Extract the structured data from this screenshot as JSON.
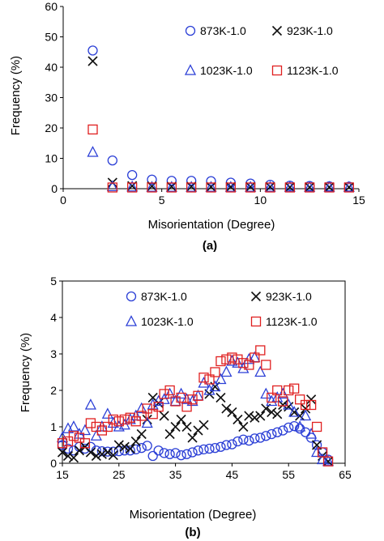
{
  "colors": {
    "873K-1.0": "#2b3fd6",
    "923K-1.0": "#111111",
    "1023K-1.0": "#2b3fd6",
    "1123K-1.0": "#e02020"
  },
  "chart_data": [
    {
      "type": "scatter",
      "panel_label": "(a)",
      "xlabel": "Misorientation (Degree)",
      "ylabel": "Frequency (%)",
      "xlim": [
        0,
        15
      ],
      "ylim": [
        0,
        60
      ],
      "xticks": [
        0,
        5,
        10,
        15
      ],
      "yticks": [
        0,
        10,
        20,
        30,
        40,
        50,
        60
      ],
      "grid": false,
      "legend_position": "top-right",
      "series": [
        {
          "name": "873K-1.0",
          "marker": "circle",
          "points": [
            [
              1.5,
              45.5
            ],
            [
              2.5,
              9.3
            ],
            [
              3.5,
              4.5
            ],
            [
              4.5,
              3.0
            ],
            [
              5.5,
              2.6
            ],
            [
              6.5,
              2.6
            ],
            [
              7.5,
              2.5
            ],
            [
              8.5,
              2.0
            ],
            [
              9.5,
              1.7
            ],
            [
              10.5,
              1.3
            ],
            [
              11.5,
              1.0
            ],
            [
              12.5,
              0.9
            ],
            [
              13.5,
              0.8
            ],
            [
              14.5,
              0.7
            ]
          ]
        },
        {
          "name": "923K-1.0",
          "marker": "x",
          "points": [
            [
              1.5,
              42
            ],
            [
              2.5,
              2.0
            ],
            [
              3.5,
              0.9
            ],
            [
              4.5,
              0.8
            ],
            [
              5.5,
              0.7
            ],
            [
              6.5,
              0.7
            ],
            [
              7.5,
              0.6
            ],
            [
              8.5,
              0.6
            ],
            [
              9.5,
              0.6
            ],
            [
              10.5,
              0.6
            ],
            [
              11.5,
              0.5
            ],
            [
              12.5,
              0.5
            ],
            [
              13.5,
              0.5
            ],
            [
              14.5,
              0.5
            ]
          ]
        },
        {
          "name": "1023K-1.0",
          "marker": "triangle",
          "points": [
            [
              1.5,
              12
            ],
            [
              2.5,
              0.7
            ],
            [
              3.5,
              0.6
            ],
            [
              4.5,
              0.5
            ],
            [
              5.5,
              0.5
            ],
            [
              6.5,
              0.5
            ],
            [
              7.5,
              0.5
            ],
            [
              8.5,
              0.5
            ],
            [
              9.5,
              0.5
            ],
            [
              10.5,
              0.5
            ],
            [
              11.5,
              0.5
            ],
            [
              12.5,
              0.5
            ],
            [
              13.5,
              0.5
            ],
            [
              14.5,
              0.5
            ]
          ]
        },
        {
          "name": "1123K-1.0",
          "marker": "square",
          "points": [
            [
              1.5,
              19.5
            ],
            [
              2.5,
              0.4
            ],
            [
              3.5,
              0.4
            ],
            [
              4.5,
              0.4
            ],
            [
              5.5,
              0.4
            ],
            [
              6.5,
              0.4
            ],
            [
              7.5,
              0.4
            ],
            [
              8.5,
              0.4
            ],
            [
              9.5,
              0.4
            ],
            [
              10.5,
              0.4
            ],
            [
              11.5,
              0.4
            ],
            [
              12.5,
              0.4
            ],
            [
              13.5,
              0.4
            ],
            [
              14.5,
              0.4
            ]
          ]
        }
      ]
    },
    {
      "type": "scatter",
      "panel_label": "(b)",
      "xlabel": "Misorientation (Degree)",
      "ylabel": "Frequency (%)",
      "xlim": [
        15,
        65
      ],
      "ylim": [
        0,
        5
      ],
      "xticks": [
        15,
        25,
        35,
        45,
        55,
        65
      ],
      "yticks": [
        0,
        1,
        2,
        3,
        4,
        5
      ],
      "grid": false,
      "legend_position": "top",
      "series": [
        {
          "name": "873K-1.0",
          "marker": "circle",
          "points": [
            [
              15,
              0.5
            ],
            [
              16,
              0.4
            ],
            [
              17,
              0.35
            ],
            [
              18,
              0.45
            ],
            [
              19,
              0.4
            ],
            [
              20,
              0.45
            ],
            [
              21,
              0.35
            ],
            [
              22,
              0.33
            ],
            [
              23,
              0.32
            ],
            [
              24,
              0.32
            ],
            [
              25,
              0.33
            ],
            [
              26,
              0.35
            ],
            [
              27,
              0.35
            ],
            [
              28,
              0.38
            ],
            [
              29,
              0.42
            ],
            [
              30,
              0.48
            ],
            [
              31,
              0.2
            ],
            [
              32,
              0.35
            ],
            [
              33,
              0.28
            ],
            [
              34,
              0.25
            ],
            [
              35,
              0.28
            ],
            [
              36,
              0.22
            ],
            [
              37,
              0.25
            ],
            [
              38,
              0.3
            ],
            [
              39,
              0.35
            ],
            [
              40,
              0.38
            ],
            [
              41,
              0.4
            ],
            [
              42,
              0.42
            ],
            [
              43,
              0.45
            ],
            [
              44,
              0.5
            ],
            [
              45,
              0.52
            ],
            [
              46,
              0.6
            ],
            [
              47,
              0.65
            ],
            [
              48,
              0.62
            ],
            [
              49,
              0.68
            ],
            [
              50,
              0.7
            ],
            [
              51,
              0.75
            ],
            [
              52,
              0.8
            ],
            [
              53,
              0.85
            ],
            [
              54,
              0.9
            ],
            [
              55,
              0.98
            ],
            [
              56,
              1.02
            ],
            [
              57,
              0.95
            ],
            [
              58,
              0.85
            ],
            [
              59,
              0.7
            ],
            [
              60,
              0.5
            ],
            [
              61,
              0.3
            ],
            [
              62,
              0.1
            ]
          ]
        },
        {
          "name": "923K-1.0",
          "marker": "x",
          "points": [
            [
              15,
              0.3
            ],
            [
              16,
              0.2
            ],
            [
              17,
              0.15
            ],
            [
              18,
              0.35
            ],
            [
              19,
              0.45
            ],
            [
              20,
              0.3
            ],
            [
              21,
              0.2
            ],
            [
              22,
              0.25
            ],
            [
              23,
              0.3
            ],
            [
              24,
              0.22
            ],
            [
              25,
              0.5
            ],
            [
              26,
              0.45
            ],
            [
              27,
              0.4
            ],
            [
              28,
              0.6
            ],
            [
              29,
              0.8
            ],
            [
              30,
              1.2
            ],
            [
              31,
              1.8
            ],
            [
              32,
              1.65
            ],
            [
              33,
              1.3
            ],
            [
              34,
              0.8
            ],
            [
              35,
              1.0
            ],
            [
              36,
              1.2
            ],
            [
              37,
              1.0
            ],
            [
              38,
              0.7
            ],
            [
              39,
              0.9
            ],
            [
              40,
              1.05
            ],
            [
              41,
              1.9
            ],
            [
              42,
              2.1
            ],
            [
              43,
              1.8
            ],
            [
              44,
              1.5
            ],
            [
              45,
              1.4
            ],
            [
              46,
              1.2
            ],
            [
              47,
              1.0
            ],
            [
              48,
              1.3
            ],
            [
              49,
              1.25
            ],
            [
              50,
              1.3
            ],
            [
              51,
              1.5
            ],
            [
              52,
              1.4
            ],
            [
              53,
              1.35
            ],
            [
              54,
              1.6
            ],
            [
              55,
              1.55
            ],
            [
              56,
              1.4
            ],
            [
              57,
              1.3
            ],
            [
              58,
              1.5
            ],
            [
              59,
              1.75
            ],
            [
              60,
              0.5
            ],
            [
              61,
              0.2
            ],
            [
              62,
              0.05
            ]
          ]
        },
        {
          "name": "1023K-1.0",
          "marker": "triangle",
          "points": [
            [
              15,
              0.7
            ],
            [
              16,
              0.95
            ],
            [
              17,
              1.0
            ],
            [
              18,
              0.8
            ],
            [
              19,
              0.9
            ],
            [
              20,
              1.6
            ],
            [
              21,
              0.75
            ],
            [
              22,
              1.0
            ],
            [
              23,
              1.35
            ],
            [
              24,
              1.1
            ],
            [
              25,
              1.0
            ],
            [
              26,
              1.05
            ],
            [
              27,
              1.2
            ],
            [
              28,
              1.3
            ],
            [
              29,
              1.5
            ],
            [
              30,
              1.1
            ],
            [
              31,
              1.6
            ],
            [
              32,
              1.7
            ],
            [
              33,
              1.75
            ],
            [
              34,
              1.9
            ],
            [
              35,
              1.7
            ],
            [
              36,
              1.9
            ],
            [
              37,
              1.75
            ],
            [
              38,
              1.7
            ],
            [
              39,
              1.85
            ],
            [
              40,
              2.2
            ],
            [
              41,
              2.0
            ],
            [
              42,
              2.1
            ],
            [
              43,
              2.3
            ],
            [
              44,
              2.5
            ],
            [
              45,
              2.8
            ],
            [
              46,
              2.75
            ],
            [
              47,
              2.6
            ],
            [
              48,
              2.85
            ],
            [
              49,
              2.9
            ],
            [
              50,
              2.5
            ],
            [
              51,
              1.9
            ],
            [
              52,
              1.7
            ],
            [
              53,
              1.8
            ],
            [
              54,
              1.9
            ],
            [
              55,
              1.6
            ],
            [
              56,
              1.4
            ],
            [
              57,
              1.0
            ],
            [
              58,
              1.3
            ],
            [
              59,
              0.8
            ],
            [
              60,
              0.3
            ],
            [
              61,
              0.1
            ],
            [
              62,
              0.05
            ]
          ]
        },
        {
          "name": "1123K-1.0",
          "marker": "square",
          "points": [
            [
              15,
              0.55
            ],
            [
              16,
              0.6
            ],
            [
              17,
              0.75
            ],
            [
              18,
              0.7
            ],
            [
              19,
              0.55
            ],
            [
              20,
              1.1
            ],
            [
              21,
              1.0
            ],
            [
              22,
              0.9
            ],
            [
              23,
              1.0
            ],
            [
              24,
              1.2
            ],
            [
              25,
              1.15
            ],
            [
              26,
              1.2
            ],
            [
              27,
              1.25
            ],
            [
              28,
              1.15
            ],
            [
              29,
              1.3
            ],
            [
              30,
              1.5
            ],
            [
              31,
              1.35
            ],
            [
              32,
              1.55
            ],
            [
              33,
              1.9
            ],
            [
              34,
              2.0
            ],
            [
              35,
              1.7
            ],
            [
              36,
              1.8
            ],
            [
              37,
              1.55
            ],
            [
              38,
              1.75
            ],
            [
              39,
              1.85
            ],
            [
              40,
              2.35
            ],
            [
              41,
              2.3
            ],
            [
              42,
              2.5
            ],
            [
              43,
              2.8
            ],
            [
              44,
              2.85
            ],
            [
              45,
              2.9
            ],
            [
              46,
              2.85
            ],
            [
              47,
              2.75
            ],
            [
              48,
              2.7
            ],
            [
              49,
              2.9
            ],
            [
              50,
              3.1
            ],
            [
              51,
              2.7
            ],
            [
              52,
              1.8
            ],
            [
              53,
              2.0
            ],
            [
              54,
              1.7
            ],
            [
              55,
              2.0
            ],
            [
              56,
              2.05
            ],
            [
              57,
              1.75
            ],
            [
              58,
              1.6
            ],
            [
              59,
              1.6
            ],
            [
              60,
              1.0
            ],
            [
              61,
              0.3
            ],
            [
              62,
              0.05
            ]
          ]
        }
      ]
    }
  ]
}
